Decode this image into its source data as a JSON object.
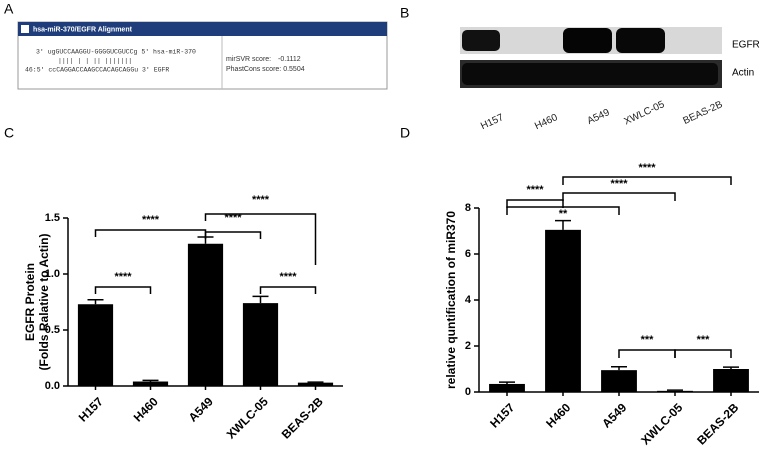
{
  "panels": [
    "A",
    "B",
    "C",
    "D"
  ],
  "alignment": {
    "title": "hsa-miR-370/EGFR Alignment",
    "lines": [
      "3' ugGUCCAAGGU-GGGGUCGUCCg 5' hsa-miR-370",
      "||||  | | || |||||||",
      "46:5' ccCAGGACCAAGCCACAGCAGGu 3' EGFR"
    ],
    "mirsvr_label": "mirSVR score:",
    "mirsvr_value": "-0.1112",
    "phastcons": "PhastCons score: 0.5504"
  },
  "blot": {
    "rows": [
      "EGFR",
      "Actin"
    ],
    "lanes": [
      "H157",
      "H460",
      "A549",
      "XWLC-05",
      "BEAS-2B"
    ]
  },
  "chart_data": [
    {
      "type": "bar",
      "ylabel": [
        "EGFR Protein",
        "(Folds Ralative to Actin)"
      ],
      "categories": [
        "H157",
        "H460",
        "A549",
        "XWLC-05",
        "BEAS-2B"
      ],
      "values": [
        0.73,
        0.04,
        1.27,
        0.74,
        0.03
      ],
      "errors": [
        0.04,
        0.01,
        0.06,
        0.06,
        0.005
      ],
      "color": "#000000",
      "ylim": [
        0,
        1.5
      ],
      "yticks": [
        {
          "value": 0,
          "label": "0.0"
        },
        0.5,
        {
          "value": 1,
          "label": "1.0"
        },
        1.5
      ],
      "annotations": [
        {
          "text": "****",
          "from": 0,
          "to": 2
        },
        {
          "text": "****",
          "from": 0,
          "to": 1
        },
        {
          "text": "****",
          "from": 2,
          "to": 3
        },
        {
          "text": "****",
          "from": 2,
          "to": 4
        },
        {
          "text": "****",
          "from": 3,
          "to": 4
        }
      ]
    },
    {
      "type": "bar",
      "ylabel": [
        "relative quntification of miR370"
      ],
      "categories": [
        "H157",
        "H460",
        "A549",
        "XWLC-05",
        "BEAS-2B"
      ],
      "values": [
        0.35,
        7.05,
        0.95,
        0.05,
        1.0
      ],
      "errors": [
        0.08,
        0.4,
        0.15,
        0.03,
        0.08
      ],
      "color": "#000000",
      "ylim": [
        0,
        8
      ],
      "yticks": [
        0,
        2,
        4,
        6,
        8
      ],
      "annotations": [
        {
          "text": "****",
          "from": 0,
          "to": 1
        },
        {
          "text": "**",
          "from": 0,
          "to": 2
        },
        {
          "text": "****",
          "from": 1,
          "to": 3
        },
        {
          "text": "****",
          "from": 1,
          "to": 4
        },
        {
          "text": "***",
          "from": 2,
          "to": 3
        },
        {
          "text": "***",
          "from": 3,
          "to": 4
        }
      ]
    }
  ]
}
